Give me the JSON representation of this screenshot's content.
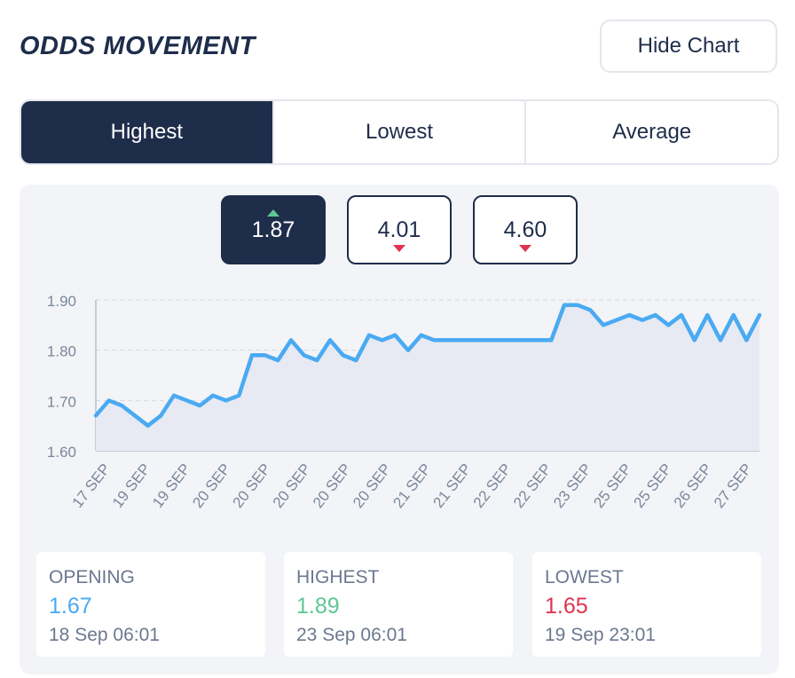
{
  "header": {
    "title": "ODDS MOVEMENT",
    "hide_chart_label": "Hide Chart"
  },
  "tabs": [
    {
      "label": "Highest",
      "active": true
    },
    {
      "label": "Lowest",
      "active": false
    },
    {
      "label": "Average",
      "active": false
    }
  ],
  "odds_boxes": [
    {
      "value": "1.87",
      "trend": "up",
      "active": true
    },
    {
      "value": "4.01",
      "trend": "down",
      "active": false
    },
    {
      "value": "4.60",
      "trend": "down",
      "active": false
    }
  ],
  "colors": {
    "navy": "#1e2d4a",
    "line": "#4aaaf2",
    "area": "#e7eaf3",
    "up": "#5cc896",
    "down": "#e0334e"
  },
  "chart_data": {
    "type": "area",
    "ylim": [
      1.6,
      1.9
    ],
    "yticks": [
      "1.90",
      "1.80",
      "1.70",
      "1.60"
    ],
    "xticks": [
      "17 SEP",
      "19 SEP",
      "19 SEP",
      "20 SEP",
      "20 SEP",
      "20 SEP",
      "20 SEP",
      "20 SEP",
      "21 SEP",
      "21 SEP",
      "22 SEP",
      "22 SEP",
      "23 SEP",
      "25 SEP",
      "25 SEP",
      "26 SEP",
      "27 SEP"
    ],
    "values": [
      1.67,
      1.7,
      1.69,
      1.67,
      1.65,
      1.67,
      1.71,
      1.7,
      1.69,
      1.71,
      1.7,
      1.71,
      1.79,
      1.79,
      1.78,
      1.82,
      1.79,
      1.78,
      1.82,
      1.79,
      1.78,
      1.83,
      1.82,
      1.83,
      1.8,
      1.83,
      1.82,
      1.82,
      1.82,
      1.82,
      1.82,
      1.82,
      1.82,
      1.82,
      1.82,
      1.82,
      1.89,
      1.89,
      1.88,
      1.85,
      1.86,
      1.87,
      1.86,
      1.87,
      1.85,
      1.87,
      1.82,
      1.87,
      1.82,
      1.87,
      1.82,
      1.87
    ]
  },
  "stats": [
    {
      "label": "OPENING",
      "value": "1.67",
      "time": "18 Sep 06:01",
      "color": "#4aaaf2"
    },
    {
      "label": "HIGHEST",
      "value": "1.89",
      "time": "23 Sep 06:01",
      "color": "#5cc896"
    },
    {
      "label": "LOWEST",
      "value": "1.65",
      "time": "19 Sep 23:01",
      "color": "#e0334e"
    }
  ]
}
